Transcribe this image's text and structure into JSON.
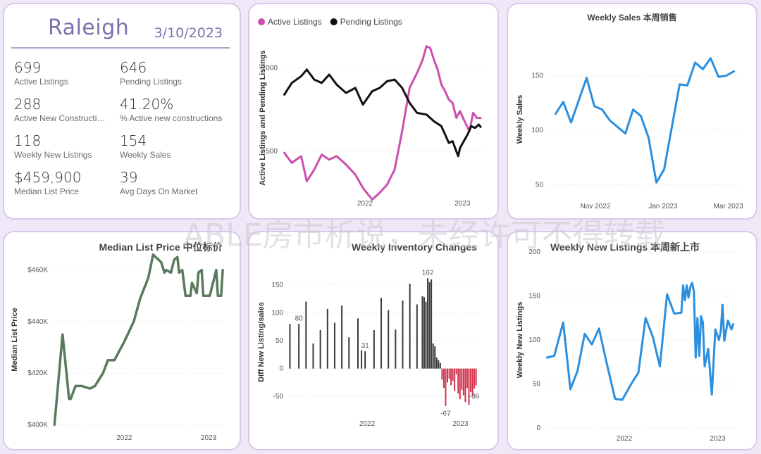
{
  "summary": {
    "city": "Raleigh",
    "date": "3/10/2023",
    "kpis": [
      {
        "value": "699",
        "label": "Active Listings"
      },
      {
        "value": "646",
        "label": "Pending Listings"
      },
      {
        "value": "288",
        "label": "Active New Constructions"
      },
      {
        "value": "41.20%",
        "label": "% Active new constructions"
      },
      {
        "value": "118",
        "label": "Weekly New Listings"
      },
      {
        "value": "154",
        "label": "Weekly Sales"
      },
      {
        "value": "$459,900",
        "label": "Median List Price"
      },
      {
        "value": "39",
        "label": "Avg Days On Market"
      }
    ]
  },
  "watermark": "ABLE房市析说，未经许可不得转载",
  "colors": {
    "active": "#cc4fae",
    "pending": "#111111",
    "blue": "#2b8fe0",
    "green": "#5a7a5e",
    "barPos": "#3a3a3a",
    "barNeg": "#d0334a",
    "card_border": "#d8c9ec"
  },
  "chart_data": [
    {
      "type": "line",
      "title": "",
      "ylabel": "Active Listings and Pending Listings",
      "xlabel": "",
      "x_ticks": [
        "2022",
        "2023"
      ],
      "y_ticks": [
        "500",
        "1000"
      ],
      "xlim": [
        "2021-03-01",
        "2023-03-15"
      ],
      "ylim": [
        250,
        1150
      ],
      "legend": "top-left",
      "series": [
        {
          "name": "Active Listings",
          "color": "#cc4fae",
          "points": [
            [
              "2021-03-05",
              490
            ],
            [
              "2021-04-02",
              430
            ],
            [
              "2021-05-07",
              470
            ],
            [
              "2021-05-28",
              320
            ],
            [
              "2021-06-25",
              390
            ],
            [
              "2021-07-23",
              480
            ],
            [
              "2021-08-20",
              450
            ],
            [
              "2021-09-17",
              470
            ],
            [
              "2021-10-22",
              420
            ],
            [
              "2021-11-26",
              360
            ],
            [
              "2021-12-24",
              280
            ],
            [
              "2022-01-28",
              210
            ],
            [
              "2022-02-25",
              250
            ],
            [
              "2022-03-25",
              300
            ],
            [
              "2022-04-22",
              390
            ],
            [
              "2022-05-20",
              620
            ],
            [
              "2022-06-17",
              880
            ],
            [
              "2022-07-15",
              970
            ],
            [
              "2022-08-05",
              1050
            ],
            [
              "2022-08-19",
              1130
            ],
            [
              "2022-09-02",
              1120
            ],
            [
              "2022-09-16",
              1050
            ],
            [
              "2022-09-30",
              990
            ],
            [
              "2022-10-14",
              900
            ],
            [
              "2022-10-28",
              860
            ],
            [
              "2022-11-11",
              810
            ],
            [
              "2022-11-25",
              790
            ],
            [
              "2022-12-09",
              700
            ],
            [
              "2022-12-23",
              740
            ],
            [
              "2023-01-06",
              690
            ],
            [
              "2023-01-27",
              620
            ],
            [
              "2023-02-10",
              730
            ],
            [
              "2023-02-24",
              700
            ],
            [
              "2023-03-10",
              699
            ]
          ]
        },
        {
          "name": "Pending Listings",
          "color": "#111111",
          "points": [
            [
              "2021-03-05",
              840
            ],
            [
              "2021-04-02",
              910
            ],
            [
              "2021-05-07",
              950
            ],
            [
              "2021-05-28",
              990
            ],
            [
              "2021-06-25",
              930
            ],
            [
              "2021-07-23",
              910
            ],
            [
              "2021-08-20",
              960
            ],
            [
              "2021-09-17",
              900
            ],
            [
              "2021-10-22",
              850
            ],
            [
              "2021-11-26",
              880
            ],
            [
              "2021-12-24",
              780
            ],
            [
              "2022-01-28",
              860
            ],
            [
              "2022-02-25",
              880
            ],
            [
              "2022-03-25",
              920
            ],
            [
              "2022-04-22",
              930
            ],
            [
              "2022-05-20",
              880
            ],
            [
              "2022-06-17",
              790
            ],
            [
              "2022-07-15",
              730
            ],
            [
              "2022-08-19",
              720
            ],
            [
              "2022-09-16",
              680
            ],
            [
              "2022-10-14",
              650
            ],
            [
              "2022-10-28",
              600
            ],
            [
              "2022-11-11",
              550
            ],
            [
              "2022-11-25",
              560
            ],
            [
              "2022-12-09",
              500
            ],
            [
              "2022-12-16",
              470
            ],
            [
              "2022-12-23",
              520
            ],
            [
              "2023-01-06",
              560
            ],
            [
              "2023-01-20",
              600
            ],
            [
              "2023-02-03",
              650
            ],
            [
              "2023-02-17",
              640
            ],
            [
              "2023-03-03",
              660
            ],
            [
              "2023-03-10",
              646
            ]
          ]
        }
      ]
    },
    {
      "type": "line",
      "title": "Weekly Sales 本周销售",
      "ylabel": "Weekly Sales",
      "xlabel": "",
      "x_ticks": [
        "Nov 2022",
        "Jan 2023",
        "Mar 2023"
      ],
      "y_ticks": [
        "50",
        "100",
        "150"
      ],
      "xlim": [
        "2022-09-20",
        "2023-03-12"
      ],
      "ylim": [
        40,
        180
      ],
      "series": [
        {
          "name": "",
          "color": "#2b8fe0",
          "points": [
            [
              "2022-09-26",
              115
            ],
            [
              "2022-10-03",
              126
            ],
            [
              "2022-10-10",
              107
            ],
            [
              "2022-10-24",
              148
            ],
            [
              "2022-10-31",
              122
            ],
            [
              "2022-11-07",
              119
            ],
            [
              "2022-11-14",
              109
            ],
            [
              "2022-11-28",
              97
            ],
            [
              "2022-12-05",
              119
            ],
            [
              "2022-12-12",
              113
            ],
            [
              "2022-12-19",
              93
            ],
            [
              "2022-12-26",
              52
            ],
            [
              "2023-01-02",
              64
            ],
            [
              "2023-01-16",
              142
            ],
            [
              "2023-01-23",
              141
            ],
            [
              "2023-01-30",
              162
            ],
            [
              "2023-02-06",
              156
            ],
            [
              "2023-02-13",
              166
            ],
            [
              "2023-02-20",
              149
            ],
            [
              "2023-02-27",
              150
            ],
            [
              "2023-03-06",
              154
            ]
          ]
        }
      ]
    },
    {
      "type": "line",
      "title": "Median List Price  中位标价",
      "ylabel": "Median List Price",
      "xlabel": "",
      "x_ticks": [
        "2022",
        "2023"
      ],
      "y_ticks": [
        "$400K",
        "$420K",
        "$440K",
        "$460K"
      ],
      "xlim": [
        "2021-03-01",
        "2023-03-15"
      ],
      "ylim": [
        399000,
        467000
      ],
      "series": [
        {
          "name": "",
          "color": "#5a7a5e",
          "points": [
            [
              "2021-03-05",
              400000
            ],
            [
              "2021-04-09",
              435000
            ],
            [
              "2021-05-07",
              410000
            ],
            [
              "2021-05-14",
              410000
            ],
            [
              "2021-06-04",
              415000
            ],
            [
              "2021-07-02",
              415000
            ],
            [
              "2021-08-06",
              414000
            ],
            [
              "2021-08-27",
              415000
            ],
            [
              "2021-10-01",
              420000
            ],
            [
              "2021-10-22",
              425000
            ],
            [
              "2021-11-19",
              425000
            ],
            [
              "2021-12-31",
              432000
            ],
            [
              "2022-02-11",
              440000
            ],
            [
              "2022-03-11",
              449000
            ],
            [
              "2022-04-15",
              457000
            ],
            [
              "2022-05-06",
              466000
            ],
            [
              "2022-06-10",
              463000
            ],
            [
              "2022-06-24",
              459000
            ],
            [
              "2022-07-01",
              460000
            ],
            [
              "2022-07-22",
              459000
            ],
            [
              "2022-08-05",
              464000
            ],
            [
              "2022-08-19",
              465000
            ],
            [
              "2022-08-26",
              459000
            ],
            [
              "2022-09-09",
              460000
            ],
            [
              "2022-09-23",
              450000
            ],
            [
              "2022-10-14",
              450000
            ],
            [
              "2022-10-21",
              455000
            ],
            [
              "2022-11-11",
              451000
            ],
            [
              "2022-11-18",
              459000
            ],
            [
              "2022-12-02",
              460000
            ],
            [
              "2022-12-09",
              450000
            ],
            [
              "2022-12-23",
              450000
            ],
            [
              "2023-01-06",
              450000
            ],
            [
              "2023-01-20",
              455000
            ],
            [
              "2023-02-03",
              460000
            ],
            [
              "2023-02-10",
              450000
            ],
            [
              "2023-02-24",
              450000
            ],
            [
              "2023-03-03",
              460000
            ]
          ]
        }
      ]
    },
    {
      "type": "bar",
      "title": "Weekly Inventory Changes",
      "ylabel": "Diff New Listing/sales",
      "xlabel": "",
      "x_ticks": [
        "2022",
        "2023"
      ],
      "y_ticks": [
        "-50",
        "0",
        "50",
        "100",
        "150"
      ],
      "xlim": [
        "2021-03-01",
        "2023-03-15"
      ],
      "ylim": [
        -80,
        175
      ],
      "data_labels": [
        {
          "x": "2021-04-09",
          "text": "80"
        },
        {
          "x": "2021-12-24",
          "text": "31"
        },
        {
          "x": "2022-08-26",
          "text": "162"
        },
        {
          "x": "2022-11-04",
          "text": "-67"
        },
        {
          "x": "2023-02-24",
          "text": "-36"
        }
      ],
      "bars": [
        [
          "2021-03-05",
          80
        ],
        [
          "2021-04-09",
          80
        ],
        [
          "2021-05-07",
          120
        ],
        [
          "2021-06-04",
          45
        ],
        [
          "2021-07-02",
          69
        ],
        [
          "2021-07-30",
          107
        ],
        [
          "2021-08-27",
          82
        ],
        [
          "2021-09-24",
          113
        ],
        [
          "2021-10-22",
          56
        ],
        [
          "2021-11-26",
          90
        ],
        [
          "2021-12-10",
          33
        ],
        [
          "2021-12-24",
          31
        ],
        [
          "2022-01-28",
          69
        ],
        [
          "2022-02-25",
          127
        ],
        [
          "2022-03-25",
          105
        ],
        [
          "2022-04-22",
          70
        ],
        [
          "2022-05-20",
          122
        ],
        [
          "2022-06-17",
          152
        ],
        [
          "2022-07-15",
          115
        ],
        [
          "2022-08-05",
          130
        ],
        [
          "2022-08-12",
          128
        ],
        [
          "2022-08-19",
          120
        ],
        [
          "2022-08-26",
          162
        ],
        [
          "2022-09-02",
          155
        ],
        [
          "2022-09-09",
          160
        ],
        [
          "2022-09-16",
          45
        ],
        [
          "2022-09-23",
          40
        ],
        [
          "2022-09-30",
          20
        ],
        [
          "2022-10-07",
          15
        ],
        [
          "2022-10-14",
          10
        ],
        [
          "2022-10-21",
          -20
        ],
        [
          "2022-10-28",
          -35
        ],
        [
          "2022-11-04",
          -67
        ],
        [
          "2022-11-11",
          -25
        ],
        [
          "2022-11-18",
          -18
        ],
        [
          "2022-11-25",
          -30
        ],
        [
          "2022-12-02",
          -22
        ],
        [
          "2022-12-09",
          -40
        ],
        [
          "2022-12-16",
          -10
        ],
        [
          "2022-12-23",
          -45
        ],
        [
          "2022-12-30",
          -55
        ],
        [
          "2023-01-06",
          -38
        ],
        [
          "2023-01-13",
          -48
        ],
        [
          "2023-01-20",
          -60
        ],
        [
          "2023-01-27",
          -35
        ],
        [
          "2023-02-03",
          -65
        ],
        [
          "2023-02-10",
          -42
        ],
        [
          "2023-02-17",
          -50
        ],
        [
          "2023-02-24",
          -36
        ],
        [
          "2023-03-03",
          -30
        ]
      ]
    },
    {
      "type": "line",
      "title": "Weekly New Listings  本周新上市",
      "ylabel": "Weekly New Listings",
      "xlabel": "",
      "x_ticks": [
        "2022",
        "2023"
      ],
      "y_ticks": [
        "0",
        "50",
        "100",
        "150",
        "200"
      ],
      "xlim": [
        "2021-03-01",
        "2023-03-15"
      ],
      "ylim": [
        0,
        200
      ],
      "series": [
        {
          "name": "",
          "color": "#2b8fe0",
          "points": [
            [
              "2021-03-05",
              80
            ],
            [
              "2021-04-02",
              82
            ],
            [
              "2021-05-07",
              120
            ],
            [
              "2021-06-04",
              44
            ],
            [
              "2021-07-02",
              65
            ],
            [
              "2021-07-30",
              107
            ],
            [
              "2021-08-27",
              95
            ],
            [
              "2021-09-24",
              113
            ],
            [
              "2021-10-22",
              76
            ],
            [
              "2021-11-26",
              33
            ],
            [
              "2021-12-24",
              32
            ],
            [
              "2022-01-28",
              50
            ],
            [
              "2022-02-25",
              63
            ],
            [
              "2022-03-25",
              125
            ],
            [
              "2022-04-22",
              104
            ],
            [
              "2022-05-20",
              70
            ],
            [
              "2022-06-17",
              152
            ],
            [
              "2022-07-15",
              130
            ],
            [
              "2022-08-12",
              131
            ],
            [
              "2022-08-19",
              162
            ],
            [
              "2022-08-26",
              145
            ],
            [
              "2022-09-02",
              162
            ],
            [
              "2022-09-09",
              148
            ],
            [
              "2022-09-16",
              160
            ],
            [
              "2022-09-23",
              165
            ],
            [
              "2022-09-30",
              155
            ],
            [
              "2022-10-07",
              80
            ],
            [
              "2022-10-14",
              125
            ],
            [
              "2022-10-21",
              82
            ],
            [
              "2022-10-28",
              127
            ],
            [
              "2022-11-04",
              120
            ],
            [
              "2022-11-11",
              70
            ],
            [
              "2022-11-25",
              90
            ],
            [
              "2022-12-09",
              38
            ],
            [
              "2022-12-23",
              112
            ],
            [
              "2023-01-06",
              100
            ],
            [
              "2023-01-13",
              110
            ],
            [
              "2023-01-20",
              140
            ],
            [
              "2023-01-27",
              99
            ],
            [
              "2023-02-10",
              122
            ],
            [
              "2023-02-24",
              112
            ],
            [
              "2023-03-03",
              118
            ]
          ]
        }
      ]
    }
  ]
}
